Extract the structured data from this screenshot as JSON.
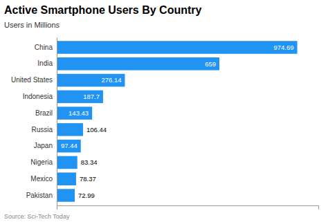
{
  "chart_data": {
    "type": "bar",
    "orientation": "horizontal",
    "title": "Active Smartphone Users By Country",
    "subtitle": "Users in Millions",
    "annotations": [
      "Source: Sci-Tech Today"
    ],
    "categories": [
      "Pakistan",
      "Mexico",
      "Nigeria",
      "Japan",
      "Russia",
      "Brazil",
      "Indonesia",
      "United States",
      "India",
      "China"
    ],
    "values": [
      72.99,
      78.37,
      83.34,
      97.44,
      106.44,
      143.43,
      187.7,
      276.14,
      659,
      974.69
    ],
    "color": "#2194f3",
    "xlim": [
      0,
      1060
    ],
    "xticks": [],
    "grid": false,
    "data_labels": true,
    "tick_labels": "y"
  }
}
